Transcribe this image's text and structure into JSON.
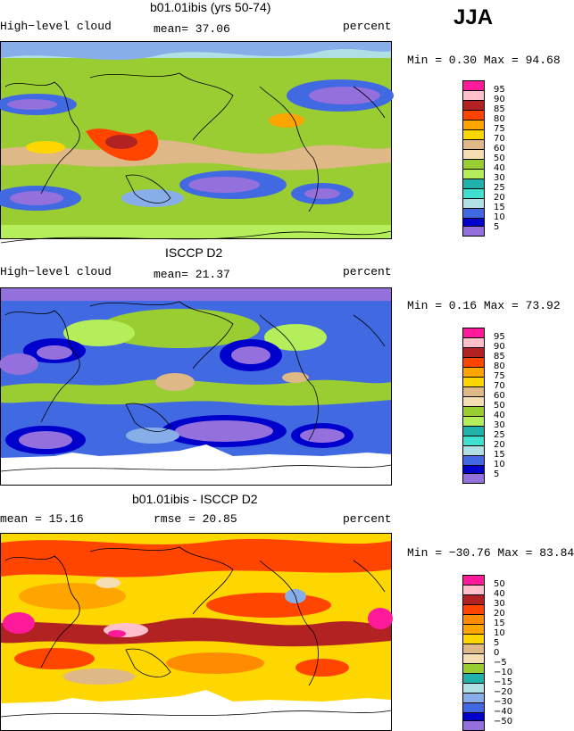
{
  "season": "JJA",
  "panels": [
    {
      "title": "b01.01ibis (yrs 50-74)",
      "left": "High−level cloud",
      "center": "mean=  37.06",
      "right": "percent",
      "minmax": "Min =   0.30 Max =  94.68",
      "legend": [
        "95",
        "90",
        "85",
        "80",
        "75",
        "70",
        "60",
        "50",
        "40",
        "30",
        "25",
        "20",
        "15",
        "10",
        "5"
      ],
      "colors": [
        "#ff1a9c",
        "#ffc0cb",
        "#b22222",
        "#ff4500",
        "#ffa500",
        "#ffd700",
        "#deb887",
        "#f5deb3",
        "#9acd32",
        "#b4ee5a",
        "#20b2aa",
        "#40e0d0",
        "#b0e0e6",
        "#87aee8",
        "#4169e1",
        "#0000cd",
        "#9370db"
      ]
    },
    {
      "title": "ISCCP D2",
      "left": "High−level cloud",
      "center": "mean=  21.37",
      "right": "percent",
      "minmax": "Min =   0.16 Max =  73.92",
      "legend": [
        "95",
        "90",
        "85",
        "80",
        "75",
        "70",
        "60",
        "50",
        "40",
        "30",
        "25",
        "20",
        "15",
        "10",
        "5"
      ],
      "colors": [
        "#ff1a9c",
        "#ffc0cb",
        "#b22222",
        "#ff4500",
        "#ffa500",
        "#ffd700",
        "#deb887",
        "#f5deb3",
        "#9acd32",
        "#b4ee5a",
        "#20b2aa",
        "#40e0d0",
        "#b0e0e6",
        "#87aee8",
        "#4169e1",
        "#0000cd",
        "#9370db"
      ]
    },
    {
      "title": "b01.01ibis - ISCCP D2",
      "left": "mean =  15.16",
      "center": "rmse =  20.85",
      "right": "percent",
      "minmax": "Min = −30.76 Max =  83.84",
      "legend": [
        "50",
        "40",
        "30",
        "20",
        "15",
        "10",
        "5",
        "0",
        "−5",
        "−10",
        "−15",
        "−20",
        "−30",
        "−40",
        "−50"
      ],
      "colors": [
        "#ff1a9c",
        "#ffc0cb",
        "#b22222",
        "#ff4500",
        "#ff8c00",
        "#ffa500",
        "#ffd700",
        "#deb887",
        "#f5deb3",
        "#9acd32",
        "#20b2aa",
        "#b0e0e6",
        "#87aee8",
        "#4169e1",
        "#0000cd",
        "#9370db"
      ]
    }
  ]
}
